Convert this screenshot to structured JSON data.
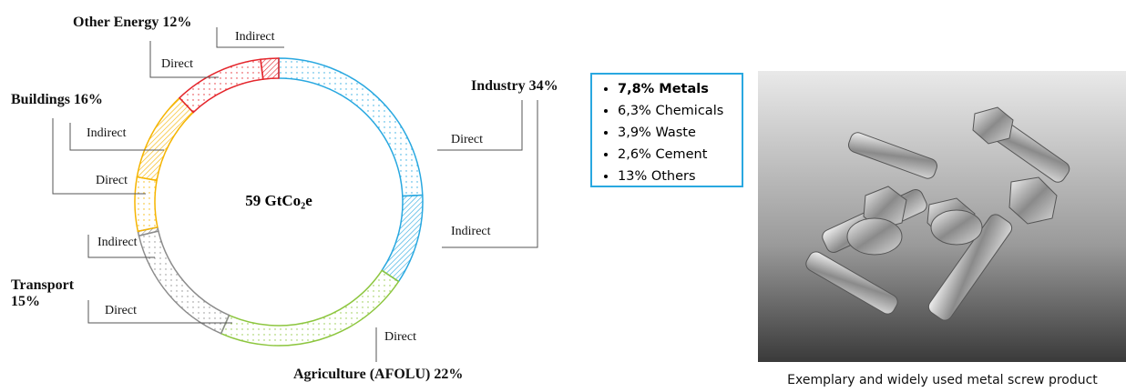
{
  "chart_data": {
    "type": "donut",
    "center_label": "59 GtCo₂e",
    "groups": [
      {
        "label": "Industry 34%",
        "value": 34,
        "color": "#29a8e0",
        "segments": [
          {
            "label": "Direct",
            "value": 24
          },
          {
            "label": "Indirect",
            "value": 10
          }
        ]
      },
      {
        "label": "Agriculture (AFOLU) 22%",
        "value": 22,
        "color": "#8dc63f",
        "segments": [
          {
            "label": "Direct",
            "value": 22
          }
        ]
      },
      {
        "label": "Transport 15%",
        "value": 15,
        "color": "#8c8c8c",
        "segments": [
          {
            "label": "Direct",
            "value": 14.5
          },
          {
            "label": "Indirect",
            "value": 0.5
          }
        ]
      },
      {
        "label": "Buildings 16%",
        "value": 16,
        "color": "#f5b400",
        "segments": [
          {
            "label": "Direct",
            "value": 6
          },
          {
            "label": "Indirect",
            "value": 10
          }
        ]
      },
      {
        "label": "Other Energy 12%",
        "value": 12,
        "color": "#e4262c",
        "segments": [
          {
            "label": "Direct",
            "value": 10
          },
          {
            "label": "Indirect",
            "value": 2
          }
        ]
      }
    ]
  },
  "breakdown": {
    "color": "#29a8e0",
    "items": [
      {
        "text": "7,8% Metals",
        "bold": true
      },
      {
        "text": "6,3% Chemicals",
        "bold": false
      },
      {
        "text": "3,9% Waste",
        "bold": false
      },
      {
        "text": "2,6% Cement",
        "bold": false
      },
      {
        "text": "13% Others",
        "bold": false
      }
    ]
  },
  "photo": {
    "caption": "Exemplary and widely used metal screw product"
  }
}
